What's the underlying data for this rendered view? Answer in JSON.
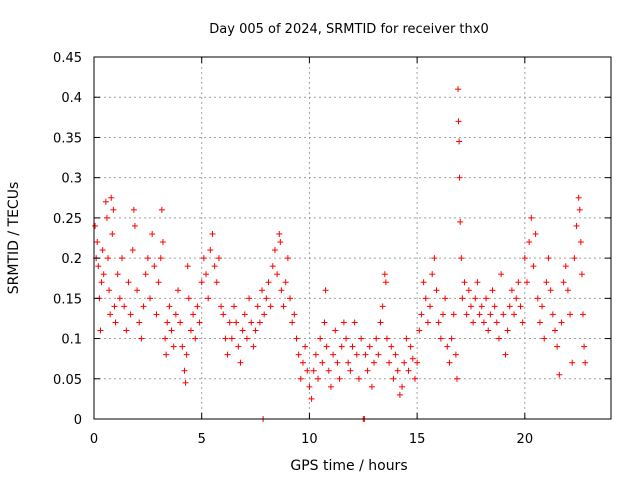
{
  "chart_data": {
    "type": "scatter",
    "title": "Day 005 of 2024, SRMTID for receiver thx0",
    "xlabel": "GPS time / hours",
    "ylabel": "SRMTID / TECUs",
    "xlim": [
      0,
      24
    ],
    "ylim": [
      0,
      0.45
    ],
    "x_ticks": [
      0,
      5,
      10,
      15,
      20
    ],
    "x_tick_labels": [
      "0",
      "5",
      "10",
      "15",
      "20"
    ],
    "y_ticks": [
      0,
      0.05,
      0.1,
      0.15,
      0.2,
      0.25,
      0.3,
      0.35,
      0.4,
      0.45
    ],
    "y_tick_labels": [
      "0",
      "0.05",
      "0.1",
      "0.15",
      "0.2",
      "0.25",
      "0.3",
      "0.35",
      "0.4",
      "0.45"
    ],
    "grid": true,
    "marker": "+",
    "color": "#ff0000",
    "series": [
      {
        "name": "SRMTID",
        "points": [
          [
            0.05,
            0.24
          ],
          [
            0.1,
            0.2
          ],
          [
            0.15,
            0.22
          ],
          [
            0.2,
            0.19
          ],
          [
            0.25,
            0.15
          ],
          [
            0.3,
            0.11
          ],
          [
            0.35,
            0.17
          ],
          [
            0.4,
            0.21
          ],
          [
            0.45,
            0.18
          ],
          [
            0.55,
            0.27
          ],
          [
            0.6,
            0.25
          ],
          [
            0.65,
            0.2
          ],
          [
            0.7,
            0.16
          ],
          [
            0.75,
            0.13
          ],
          [
            0.8,
            0.275
          ],
          [
            0.85,
            0.23
          ],
          [
            0.9,
            0.26
          ],
          [
            0.95,
            0.14
          ],
          [
            1.0,
            0.12
          ],
          [
            1.1,
            0.18
          ],
          [
            1.2,
            0.15
          ],
          [
            1.3,
            0.2
          ],
          [
            1.4,
            0.14
          ],
          [
            1.5,
            0.11
          ],
          [
            1.6,
            0.17
          ],
          [
            1.7,
            0.13
          ],
          [
            1.8,
            0.21
          ],
          [
            1.85,
            0.26
          ],
          [
            1.9,
            0.24
          ],
          [
            2.0,
            0.16
          ],
          [
            2.1,
            0.12
          ],
          [
            2.2,
            0.1
          ],
          [
            2.3,
            0.14
          ],
          [
            2.4,
            0.18
          ],
          [
            2.5,
            0.2
          ],
          [
            2.6,
            0.15
          ],
          [
            2.7,
            0.23
          ],
          [
            2.8,
            0.19
          ],
          [
            2.9,
            0.13
          ],
          [
            3.0,
            0.17
          ],
          [
            3.1,
            0.2
          ],
          [
            3.15,
            0.26
          ],
          [
            3.2,
            0.22
          ],
          [
            3.3,
            0.1
          ],
          [
            3.35,
            0.08
          ],
          [
            3.4,
            0.12
          ],
          [
            3.5,
            0.14
          ],
          [
            3.6,
            0.11
          ],
          [
            3.7,
            0.09
          ],
          [
            3.8,
            0.13
          ],
          [
            3.9,
            0.16
          ],
          [
            4.0,
            0.12
          ],
          [
            4.1,
            0.09
          ],
          [
            4.2,
            0.06
          ],
          [
            4.25,
            0.045
          ],
          [
            4.3,
            0.08
          ],
          [
            4.35,
            0.19
          ],
          [
            4.4,
            0.15
          ],
          [
            4.5,
            0.11
          ],
          [
            4.6,
            0.13
          ],
          [
            4.7,
            0.1
          ],
          [
            4.8,
            0.14
          ],
          [
            4.9,
            0.12
          ],
          [
            5.0,
            0.17
          ],
          [
            5.1,
            0.2
          ],
          [
            5.2,
            0.18
          ],
          [
            5.3,
            0.15
          ],
          [
            5.4,
            0.21
          ],
          [
            5.5,
            0.23
          ],
          [
            5.6,
            0.19
          ],
          [
            5.7,
            0.17
          ],
          [
            5.8,
            0.2
          ],
          [
            5.9,
            0.14
          ],
          [
            6.0,
            0.13
          ],
          [
            6.1,
            0.1
          ],
          [
            6.2,
            0.08
          ],
          [
            6.3,
            0.12
          ],
          [
            6.4,
            0.1
          ],
          [
            6.5,
            0.14
          ],
          [
            6.6,
            0.12
          ],
          [
            6.7,
            0.09
          ],
          [
            6.8,
            0.07
          ],
          [
            6.9,
            0.11
          ],
          [
            7.0,
            0.13
          ],
          [
            7.1,
            0.1
          ],
          [
            7.2,
            0.15
          ],
          [
            7.3,
            0.12
          ],
          [
            7.4,
            0.09
          ],
          [
            7.5,
            0.11
          ],
          [
            7.6,
            0.14
          ],
          [
            7.7,
            0.12
          ],
          [
            7.8,
            0.16
          ],
          [
            7.85,
            0.0
          ],
          [
            7.9,
            0.13
          ],
          [
            8.0,
            0.15
          ],
          [
            8.1,
            0.17
          ],
          [
            8.2,
            0.14
          ],
          [
            8.3,
            0.19
          ],
          [
            8.4,
            0.21
          ],
          [
            8.5,
            0.18
          ],
          [
            8.6,
            0.23
          ],
          [
            8.65,
            0.22
          ],
          [
            8.7,
            0.16
          ],
          [
            8.8,
            0.14
          ],
          [
            8.9,
            0.17
          ],
          [
            9.0,
            0.2
          ],
          [
            9.1,
            0.15
          ],
          [
            9.2,
            0.12
          ],
          [
            9.3,
            0.13
          ],
          [
            9.4,
            0.1
          ],
          [
            9.5,
            0.08
          ],
          [
            9.6,
            0.05
          ],
          [
            9.7,
            0.07
          ],
          [
            9.8,
            0.09
          ],
          [
            9.9,
            0.06
          ],
          [
            10.0,
            0.04
          ],
          [
            10.1,
            0.025
          ],
          [
            10.2,
            0.06
          ],
          [
            10.3,
            0.08
          ],
          [
            10.4,
            0.05
          ],
          [
            10.5,
            0.1
          ],
          [
            10.6,
            0.07
          ],
          [
            10.7,
            0.12
          ],
          [
            10.75,
            0.16
          ],
          [
            10.8,
            0.09
          ],
          [
            10.9,
            0.06
          ],
          [
            11.0,
            0.04
          ],
          [
            11.1,
            0.08
          ],
          [
            11.2,
            0.11
          ],
          [
            11.3,
            0.07
          ],
          [
            11.4,
            0.05
          ],
          [
            11.5,
            0.09
          ],
          [
            11.6,
            0.12
          ],
          [
            11.7,
            0.1
          ],
          [
            11.8,
            0.07
          ],
          [
            11.9,
            0.06
          ],
          [
            12.0,
            0.09
          ],
          [
            12.1,
            0.12
          ],
          [
            12.2,
            0.08
          ],
          [
            12.3,
            0.05
          ],
          [
            12.4,
            0.1
          ],
          [
            12.5,
            0.0
          ],
          [
            12.55,
            0.0
          ],
          [
            12.6,
            0.08
          ],
          [
            12.7,
            0.06
          ],
          [
            12.8,
            0.09
          ],
          [
            12.9,
            0.04
          ],
          [
            13.0,
            0.07
          ],
          [
            13.1,
            0.1
          ],
          [
            13.2,
            0.08
          ],
          [
            13.3,
            0.12
          ],
          [
            13.4,
            0.14
          ],
          [
            13.5,
            0.18
          ],
          [
            13.55,
            0.17
          ],
          [
            13.6,
            0.1
          ],
          [
            13.7,
            0.07
          ],
          [
            13.8,
            0.09
          ],
          [
            13.9,
            0.05
          ],
          [
            14.0,
            0.08
          ],
          [
            14.1,
            0.06
          ],
          [
            14.2,
            0.03
          ],
          [
            14.3,
            0.04
          ],
          [
            14.4,
            0.07
          ],
          [
            14.5,
            0.1
          ],
          [
            14.6,
            0.06
          ],
          [
            14.7,
            0.09
          ],
          [
            14.8,
            0.075
          ],
          [
            14.9,
            0.05
          ],
          [
            15.0,
            0.07
          ],
          [
            15.1,
            0.11
          ],
          [
            15.2,
            0.13
          ],
          [
            15.3,
            0.17
          ],
          [
            15.4,
            0.15
          ],
          [
            15.5,
            0.12
          ],
          [
            15.6,
            0.14
          ],
          [
            15.7,
            0.18
          ],
          [
            15.8,
            0.2
          ],
          [
            15.9,
            0.16
          ],
          [
            16.0,
            0.12
          ],
          [
            16.1,
            0.1
          ],
          [
            16.2,
            0.13
          ],
          [
            16.3,
            0.15
          ],
          [
            16.4,
            0.09
          ],
          [
            16.5,
            0.07
          ],
          [
            16.6,
            0.1
          ],
          [
            16.7,
            0.13
          ],
          [
            16.8,
            0.08
          ],
          [
            16.85,
            0.05
          ],
          [
            16.9,
            0.41
          ],
          [
            16.92,
            0.37
          ],
          [
            16.95,
            0.345
          ],
          [
            16.97,
            0.3
          ],
          [
            17.0,
            0.245
          ],
          [
            17.05,
            0.2
          ],
          [
            17.1,
            0.15
          ],
          [
            17.2,
            0.17
          ],
          [
            17.3,
            0.13
          ],
          [
            17.4,
            0.16
          ],
          [
            17.5,
            0.14
          ],
          [
            17.6,
            0.12
          ],
          [
            17.7,
            0.15
          ],
          [
            17.8,
            0.17
          ],
          [
            17.9,
            0.13
          ],
          [
            18.0,
            0.14
          ],
          [
            18.1,
            0.12
          ],
          [
            18.2,
            0.15
          ],
          [
            18.3,
            0.11
          ],
          [
            18.4,
            0.13
          ],
          [
            18.5,
            0.16
          ],
          [
            18.6,
            0.14
          ],
          [
            18.7,
            0.12
          ],
          [
            18.8,
            0.1
          ],
          [
            18.9,
            0.18
          ],
          [
            19.0,
            0.13
          ],
          [
            19.1,
            0.08
          ],
          [
            19.2,
            0.11
          ],
          [
            19.3,
            0.14
          ],
          [
            19.4,
            0.16
          ],
          [
            19.5,
            0.13
          ],
          [
            19.6,
            0.15
          ],
          [
            19.7,
            0.17
          ],
          [
            19.8,
            0.14
          ],
          [
            19.9,
            0.12
          ],
          [
            20.0,
            0.2
          ],
          [
            20.1,
            0.17
          ],
          [
            20.2,
            0.22
          ],
          [
            20.3,
            0.25
          ],
          [
            20.4,
            0.19
          ],
          [
            20.5,
            0.23
          ],
          [
            20.6,
            0.15
          ],
          [
            20.7,
            0.12
          ],
          [
            20.8,
            0.14
          ],
          [
            20.9,
            0.1
          ],
          [
            21.0,
            0.17
          ],
          [
            21.1,
            0.2
          ],
          [
            21.2,
            0.16
          ],
          [
            21.3,
            0.13
          ],
          [
            21.4,
            0.11
          ],
          [
            21.5,
            0.09
          ],
          [
            21.6,
            0.055
          ],
          [
            21.7,
            0.12
          ],
          [
            21.8,
            0.17
          ],
          [
            21.9,
            0.19
          ],
          [
            22.0,
            0.16
          ],
          [
            22.1,
            0.13
          ],
          [
            22.2,
            0.07
          ],
          [
            22.3,
            0.2
          ],
          [
            22.4,
            0.24
          ],
          [
            22.5,
            0.275
          ],
          [
            22.55,
            0.26
          ],
          [
            22.6,
            0.22
          ],
          [
            22.65,
            0.18
          ],
          [
            22.7,
            0.13
          ],
          [
            22.75,
            0.09
          ],
          [
            22.8,
            0.07
          ]
        ]
      }
    ]
  }
}
